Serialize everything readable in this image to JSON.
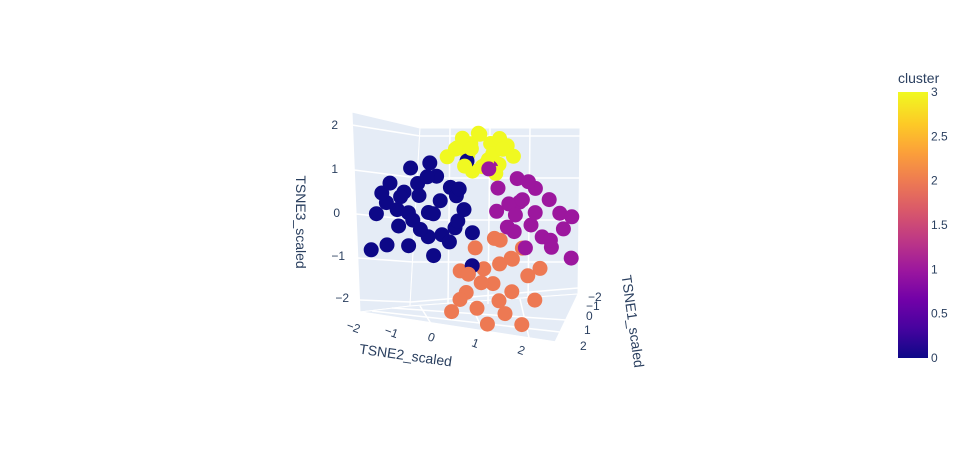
{
  "chart_data": {
    "type": "scatter",
    "projection": "3d",
    "axes": {
      "x": {
        "title": "TSNE1_scaled",
        "ticks": [
          "−2",
          "−1",
          "0",
          "1",
          "2"
        ]
      },
      "y": {
        "title": "TSNE2_scaled",
        "ticks": [
          "−2",
          "−1",
          "0",
          "1",
          "2"
        ]
      },
      "z": {
        "title": "TSNE3_scaled",
        "ticks": [
          "−2",
          "−1",
          "0",
          "1",
          "2"
        ]
      }
    },
    "colorbar": {
      "title": "cluster",
      "range": [
        0,
        3
      ],
      "ticks": [
        "0",
        "0.5",
        "1",
        "1.5",
        "2",
        "2.5",
        "3"
      ],
      "colors": [
        "#0d0887",
        "#46039f",
        "#7201a8",
        "#9c179e",
        "#bd3786",
        "#d8576b",
        "#ed7953",
        "#fb9f3a",
        "#fdca26",
        "#f0f921"
      ]
    },
    "cluster_colors": {
      "0": "#0d0887",
      "1": "#9c179e",
      "2": "#ed7953",
      "3": "#f0f921"
    },
    "points": [
      {
        "x": 0.0,
        "y": -0.2,
        "z": 1.8,
        "c": 3
      },
      {
        "x": 0.1,
        "y": 0.0,
        "z": 1.7,
        "c": 3
      },
      {
        "x": -0.2,
        "y": 0.3,
        "z": 1.9,
        "c": 3
      },
      {
        "x": 0.2,
        "y": 0.5,
        "z": 1.75,
        "c": 3
      },
      {
        "x": -0.1,
        "y": 0.8,
        "z": 1.85,
        "c": 3
      },
      {
        "x": 0.3,
        "y": -0.4,
        "z": 1.6,
        "c": 3
      },
      {
        "x": -0.3,
        "y": 0.1,
        "z": 1.55,
        "c": 3
      },
      {
        "x": 0.0,
        "y": 0.6,
        "z": 1.5,
        "c": 3
      },
      {
        "x": 0.2,
        "y": -0.1,
        "z": 1.45,
        "c": 3
      },
      {
        "x": -0.2,
        "y": 0.9,
        "z": 1.6,
        "c": 3
      },
      {
        "x": 0.1,
        "y": 0.2,
        "z": 1.95,
        "c": 3
      },
      {
        "x": -0.4,
        "y": -0.3,
        "z": 1.5,
        "c": 3
      },
      {
        "x": 0.4,
        "y": 0.4,
        "z": 1.4,
        "c": 3
      },
      {
        "x": -0.1,
        "y": 1.0,
        "z": 1.7,
        "c": 3
      },
      {
        "x": 0.3,
        "y": 0.7,
        "z": 1.3,
        "c": 3
      },
      {
        "x": 0.0,
        "y": -0.6,
        "z": 1.35,
        "c": 3
      },
      {
        "x": -0.3,
        "y": 0.5,
        "z": 1.25,
        "c": 3
      },
      {
        "x": 0.2,
        "y": 1.1,
        "z": 1.5,
        "c": 3
      },
      {
        "x": 0.1,
        "y": 0.3,
        "z": 1.2,
        "c": 3
      },
      {
        "x": -0.2,
        "y": -0.1,
        "z": 1.15,
        "c": 3
      },
      {
        "x": 0.3,
        "y": 0.0,
        "z": 1.1,
        "c": 3
      },
      {
        "x": -0.1,
        "y": 0.7,
        "z": 1.05,
        "c": 3
      },
      {
        "x": 0.2,
        "y": -1.1,
        "z": 1.2,
        "c": 0
      },
      {
        "x": -0.3,
        "y": -1.5,
        "z": 1.0,
        "c": 0
      },
      {
        "x": 0.1,
        "y": -0.9,
        "z": 0.9,
        "c": 0
      },
      {
        "x": -0.5,
        "y": -2.0,
        "z": 0.6,
        "c": 0
      },
      {
        "x": 0.3,
        "y": -1.8,
        "z": 0.5,
        "c": 0
      },
      {
        "x": -0.2,
        "y": -1.3,
        "z": 0.4,
        "c": 0
      },
      {
        "x": 0.4,
        "y": -0.6,
        "z": 0.7,
        "c": 0
      },
      {
        "x": -0.6,
        "y": -1.0,
        "z": 0.8,
        "c": 0
      },
      {
        "x": 0.0,
        "y": -2.2,
        "z": 0.2,
        "c": 0
      },
      {
        "x": -0.1,
        "y": -1.6,
        "z": 0.0,
        "c": 0
      },
      {
        "x": 0.5,
        "y": -1.2,
        "z": 0.1,
        "c": 0
      },
      {
        "x": -0.4,
        "y": -0.7,
        "z": 0.3,
        "c": 0
      },
      {
        "x": 0.2,
        "y": -0.4,
        "z": 0.5,
        "c": 0
      },
      {
        "x": -0.3,
        "y": -2.4,
        "z": -0.1,
        "c": 0
      },
      {
        "x": 0.1,
        "y": -1.9,
        "z": -0.3,
        "c": 0
      },
      {
        "x": -0.5,
        "y": -1.4,
        "z": -0.2,
        "c": 0
      },
      {
        "x": 0.3,
        "y": -0.8,
        "z": -0.4,
        "c": 0
      },
      {
        "x": 0.0,
        "y": -1.1,
        "z": -0.5,
        "c": 0
      },
      {
        "x": -0.2,
        "y": -0.5,
        "z": -0.6,
        "c": 0
      },
      {
        "x": 0.4,
        "y": -1.7,
        "z": -0.7,
        "c": 0
      },
      {
        "x": -0.4,
        "y": -2.1,
        "z": -0.8,
        "c": 0
      },
      {
        "x": 0.2,
        "y": -0.2,
        "z": 0.2,
        "c": 0
      },
      {
        "x": -0.1,
        "y": -0.3,
        "z": -0.1,
        "c": 0
      },
      {
        "x": 0.1,
        "y": -1.4,
        "z": 0.7,
        "c": 0
      },
      {
        "x": -0.6,
        "y": -1.7,
        "z": 0.3,
        "c": 0
      },
      {
        "x": 0.5,
        "y": -0.5,
        "z": -0.2,
        "c": 0
      },
      {
        "x": -0.3,
        "y": -0.9,
        "z": 0.0,
        "c": 0
      },
      {
        "x": 0.0,
        "y": -2.6,
        "z": -0.9,
        "c": 0
      },
      {
        "x": 0.3,
        "y": 0.0,
        "z": -0.3,
        "c": 0
      },
      {
        "x": -0.2,
        "y": 0.1,
        "z": -1.1,
        "c": 0
      },
      {
        "x": 0.1,
        "y": -0.1,
        "z": 1.3,
        "c": 0
      },
      {
        "x": -0.4,
        "y": -0.2,
        "z": 0.6,
        "c": 0
      },
      {
        "x": 0.2,
        "y": -1.0,
        "z": -0.9,
        "c": 0
      },
      {
        "x": -0.1,
        "y": -2.3,
        "z": 0.4,
        "c": 0
      },
      {
        "x": 0.4,
        "y": -2.0,
        "z": 0.1,
        "c": 0
      },
      {
        "x": -0.5,
        "y": -1.2,
        "z": -0.4,
        "c": 0
      },
      {
        "x": 0.2,
        "y": 1.2,
        "z": 1.0,
        "c": 1
      },
      {
        "x": -0.3,
        "y": 1.6,
        "z": 0.9,
        "c": 1
      },
      {
        "x": 0.4,
        "y": 2.0,
        "z": 0.6,
        "c": 1
      },
      {
        "x": -0.1,
        "y": 1.4,
        "z": 0.5,
        "c": 1
      },
      {
        "x": 0.3,
        "y": 2.3,
        "z": 0.3,
        "c": 1
      },
      {
        "x": -0.4,
        "y": 1.8,
        "z": 0.2,
        "c": 1
      },
      {
        "x": 0.1,
        "y": 1.0,
        "z": 0.4,
        "c": 1
      },
      {
        "x": 0.5,
        "y": 1.5,
        "z": 0.0,
        "c": 1
      },
      {
        "x": -0.2,
        "y": 2.5,
        "z": -0.1,
        "c": 1
      },
      {
        "x": 0.0,
        "y": 1.9,
        "z": -0.3,
        "c": 1
      },
      {
        "x": 0.3,
        "y": 1.1,
        "z": -0.2,
        "c": 1
      },
      {
        "x": -0.5,
        "y": 1.3,
        "z": 0.1,
        "c": 1
      },
      {
        "x": 0.2,
        "y": 2.1,
        "z": -0.5,
        "c": 1
      },
      {
        "x": -0.3,
        "y": 0.8,
        "z": 0.7,
        "c": 1
      },
      {
        "x": 0.4,
        "y": 0.9,
        "z": -0.1,
        "c": 1
      },
      {
        "x": -0.1,
        "y": 2.7,
        "z": 0.2,
        "c": 1
      },
      {
        "x": 0.1,
        "y": 1.7,
        "z": 0.8,
        "c": 1
      },
      {
        "x": -0.4,
        "y": 2.2,
        "z": -0.4,
        "c": 1
      },
      {
        "x": 0.5,
        "y": 1.2,
        "z": 0.5,
        "c": 1
      },
      {
        "x": 0.0,
        "y": 0.7,
        "z": 0.2,
        "c": 1
      },
      {
        "x": -0.2,
        "y": 1.5,
        "z": -0.6,
        "c": 1
      },
      {
        "x": 0.3,
        "y": 2.6,
        "z": -0.7,
        "c": 1
      },
      {
        "x": -0.5,
        "y": 0.6,
        "z": 1.1,
        "c": 1
      },
      {
        "x": 0.2,
        "y": 0.5,
        "z": 1.2,
        "c": 1
      },
      {
        "x": 0.2,
        "y": 0.6,
        "z": -0.4,
        "c": 2
      },
      {
        "x": -0.3,
        "y": 0.2,
        "z": -0.7,
        "c": 2
      },
      {
        "x": 0.4,
        "y": 1.0,
        "z": -0.8,
        "c": 2
      },
      {
        "x": -0.1,
        "y": 0.8,
        "z": -1.0,
        "c": 2
      },
      {
        "x": 0.3,
        "y": 0.3,
        "z": -1.1,
        "c": 2
      },
      {
        "x": -0.4,
        "y": 1.2,
        "z": -0.9,
        "c": 2
      },
      {
        "x": 0.1,
        "y": 1.5,
        "z": -1.2,
        "c": 2
      },
      {
        "x": 0.5,
        "y": 0.5,
        "z": -1.4,
        "c": 2
      },
      {
        "x": -0.2,
        "y": 0.0,
        "z": -1.3,
        "c": 2
      },
      {
        "x": 0.0,
        "y": 1.1,
        "z": -1.6,
        "c": 2
      },
      {
        "x": 0.3,
        "y": 0.7,
        "z": -1.8,
        "c": 2
      },
      {
        "x": -0.5,
        "y": 0.4,
        "z": -1.5,
        "c": 2
      },
      {
        "x": 0.2,
        "y": 1.8,
        "z": -1.0,
        "c": 2
      },
      {
        "x": -0.3,
        "y": -0.2,
        "z": -1.9,
        "c": 2
      },
      {
        "x": 0.4,
        "y": 0.1,
        "z": -2.0,
        "c": 2
      },
      {
        "x": -0.1,
        "y": 1.4,
        "z": -0.6,
        "c": 2
      },
      {
        "x": 0.1,
        "y": 0.9,
        "z": -2.1,
        "c": 2
      },
      {
        "x": -0.4,
        "y": -0.4,
        "z": -2.2,
        "c": 2
      },
      {
        "x": 0.5,
        "y": 1.6,
        "z": -1.7,
        "c": 2
      },
      {
        "x": 0.0,
        "y": -0.1,
        "z": -1.7,
        "c": 2
      },
      {
        "x": -0.2,
        "y": 0.5,
        "z": -2.4,
        "c": 2
      },
      {
        "x": 0.3,
        "y": 1.3,
        "z": -2.3,
        "c": 2
      },
      {
        "x": -0.5,
        "y": 0.9,
        "z": -0.5,
        "c": 2
      },
      {
        "x": 0.2,
        "y": -0.3,
        "z": -1.2,
        "c": 2
      }
    ]
  }
}
